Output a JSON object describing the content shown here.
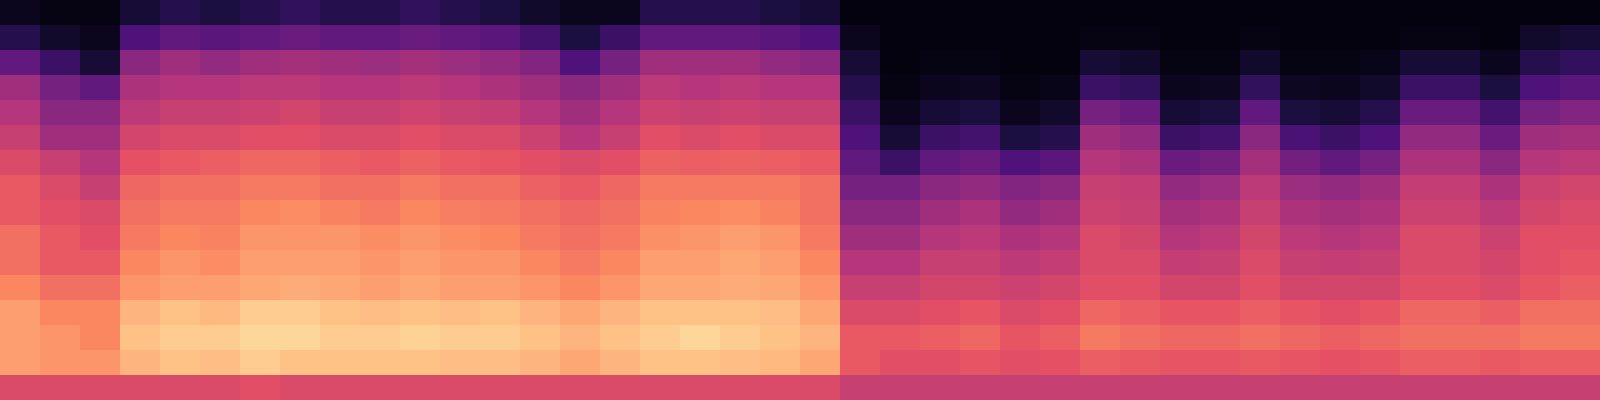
{
  "chart_data": {
    "type": "heatmap",
    "tick_labels": false,
    "color": "magma",
    "zlim": [
      0,
      1
    ],
    "cells": [
      [
        0.05,
        0.15,
        0.3,
        0.45,
        0.5,
        0.55,
        0.6,
        0.65,
        0.65,
        0.7,
        0.7,
        0.75,
        0.8,
        0.8,
        0.8,
        0.6
      ],
      [
        0.03,
        0.08,
        0.2,
        0.35,
        0.4,
        0.45,
        0.55,
        0.6,
        0.62,
        0.65,
        0.65,
        0.7,
        0.75,
        0.78,
        0.78,
        0.6
      ],
      [
        0.03,
        0.05,
        0.1,
        0.3,
        0.4,
        0.45,
        0.5,
        0.55,
        0.6,
        0.62,
        0.65,
        0.7,
        0.75,
        0.75,
        0.78,
        0.6
      ],
      [
        0.1,
        0.25,
        0.4,
        0.48,
        0.52,
        0.58,
        0.63,
        0.68,
        0.7,
        0.72,
        0.75,
        0.78,
        0.85,
        0.88,
        0.85,
        0.6
      ],
      [
        0.15,
        0.3,
        0.45,
        0.5,
        0.55,
        0.6,
        0.65,
        0.7,
        0.72,
        0.75,
        0.78,
        0.8,
        0.88,
        0.9,
        0.88,
        0.6
      ],
      [
        0.12,
        0.28,
        0.42,
        0.5,
        0.55,
        0.6,
        0.66,
        0.7,
        0.72,
        0.74,
        0.76,
        0.8,
        0.86,
        0.9,
        0.87,
        0.6
      ],
      [
        0.15,
        0.3,
        0.45,
        0.52,
        0.56,
        0.62,
        0.68,
        0.72,
        0.75,
        0.78,
        0.8,
        0.82,
        0.9,
        0.92,
        0.9,
        0.62
      ],
      [
        0.18,
        0.32,
        0.46,
        0.52,
        0.58,
        0.62,
        0.68,
        0.72,
        0.76,
        0.78,
        0.8,
        0.83,
        0.9,
        0.92,
        0.88,
        0.6
      ],
      [
        0.15,
        0.3,
        0.45,
        0.5,
        0.55,
        0.6,
        0.66,
        0.7,
        0.74,
        0.78,
        0.8,
        0.82,
        0.88,
        0.9,
        0.88,
        0.6
      ],
      [
        0.15,
        0.3,
        0.44,
        0.5,
        0.55,
        0.6,
        0.65,
        0.7,
        0.72,
        0.76,
        0.78,
        0.8,
        0.87,
        0.9,
        0.88,
        0.6
      ],
      [
        0.18,
        0.32,
        0.46,
        0.52,
        0.57,
        0.62,
        0.67,
        0.72,
        0.75,
        0.78,
        0.8,
        0.82,
        0.88,
        0.91,
        0.88,
        0.6
      ],
      [
        0.15,
        0.3,
        0.44,
        0.5,
        0.55,
        0.6,
        0.65,
        0.7,
        0.73,
        0.76,
        0.78,
        0.8,
        0.87,
        0.9,
        0.87,
        0.6
      ],
      [
        0.12,
        0.28,
        0.42,
        0.48,
        0.54,
        0.6,
        0.64,
        0.7,
        0.72,
        0.75,
        0.78,
        0.8,
        0.88,
        0.9,
        0.87,
        0.6
      ],
      [
        0.08,
        0.22,
        0.38,
        0.45,
        0.5,
        0.56,
        0.62,
        0.67,
        0.7,
        0.72,
        0.75,
        0.78,
        0.85,
        0.88,
        0.85,
        0.6
      ],
      [
        0.05,
        0.12,
        0.25,
        0.4,
        0.45,
        0.5,
        0.6,
        0.65,
        0.68,
        0.7,
        0.72,
        0.75,
        0.82,
        0.85,
        0.82,
        0.6
      ],
      [
        0.05,
        0.2,
        0.35,
        0.45,
        0.5,
        0.55,
        0.62,
        0.68,
        0.7,
        0.72,
        0.75,
        0.78,
        0.85,
        0.88,
        0.85,
        0.6
      ],
      [
        0.15,
        0.3,
        0.45,
        0.52,
        0.56,
        0.62,
        0.67,
        0.72,
        0.74,
        0.77,
        0.8,
        0.82,
        0.88,
        0.9,
        0.88,
        0.6
      ],
      [
        0.15,
        0.3,
        0.45,
        0.5,
        0.55,
        0.6,
        0.66,
        0.72,
        0.75,
        0.78,
        0.8,
        0.82,
        0.88,
        0.92,
        0.88,
        0.6
      ],
      [
        0.15,
        0.3,
        0.45,
        0.52,
        0.56,
        0.62,
        0.67,
        0.72,
        0.76,
        0.8,
        0.82,
        0.83,
        0.88,
        0.9,
        0.87,
        0.6
      ],
      [
        0.12,
        0.28,
        0.42,
        0.5,
        0.55,
        0.6,
        0.66,
        0.72,
        0.74,
        0.78,
        0.8,
        0.82,
        0.87,
        0.88,
        0.86,
        0.6
      ],
      [
        0.1,
        0.25,
        0.4,
        0.5,
        0.55,
        0.6,
        0.65,
        0.7,
        0.7,
        0.72,
        0.75,
        0.78,
        0.82,
        0.85,
        0.82,
        0.6
      ],
      [
        0.02,
        0.05,
        0.1,
        0.15,
        0.2,
        0.25,
        0.3,
        0.35,
        0.4,
        0.45,
        0.5,
        0.55,
        0.6,
        0.65,
        0.65,
        0.55
      ],
      [
        0.02,
        0.02,
        0.02,
        0.03,
        0.05,
        0.1,
        0.2,
        0.35,
        0.4,
        0.45,
        0.5,
        0.55,
        0.6,
        0.65,
        0.62,
        0.55
      ],
      [
        0.02,
        0.02,
        0.03,
        0.05,
        0.1,
        0.2,
        0.3,
        0.4,
        0.45,
        0.5,
        0.55,
        0.58,
        0.62,
        0.66,
        0.62,
        0.55
      ],
      [
        0.02,
        0.02,
        0.03,
        0.06,
        0.12,
        0.22,
        0.32,
        0.42,
        0.48,
        0.52,
        0.55,
        0.58,
        0.64,
        0.68,
        0.64,
        0.55
      ],
      [
        0.02,
        0.02,
        0.02,
        0.03,
        0.05,
        0.12,
        0.25,
        0.38,
        0.42,
        0.48,
        0.52,
        0.56,
        0.6,
        0.64,
        0.62,
        0.55
      ],
      [
        0.02,
        0.02,
        0.02,
        0.04,
        0.08,
        0.15,
        0.28,
        0.4,
        0.45,
        0.5,
        0.54,
        0.58,
        0.62,
        0.66,
        0.63,
        0.55
      ],
      [
        0.02,
        0.03,
        0.1,
        0.2,
        0.35,
        0.45,
        0.5,
        0.55,
        0.56,
        0.6,
        0.6,
        0.62,
        0.68,
        0.72,
        0.66,
        0.55
      ],
      [
        0.02,
        0.03,
        0.08,
        0.18,
        0.32,
        0.42,
        0.48,
        0.54,
        0.55,
        0.58,
        0.6,
        0.62,
        0.66,
        0.7,
        0.65,
        0.55
      ],
      [
        0.02,
        0.02,
        0.03,
        0.05,
        0.1,
        0.2,
        0.32,
        0.42,
        0.46,
        0.5,
        0.54,
        0.58,
        0.64,
        0.68,
        0.64,
        0.55
      ],
      [
        0.02,
        0.02,
        0.03,
        0.06,
        0.12,
        0.22,
        0.34,
        0.44,
        0.48,
        0.52,
        0.55,
        0.58,
        0.64,
        0.68,
        0.64,
        0.55
      ],
      [
        0.02,
        0.03,
        0.08,
        0.18,
        0.3,
        0.4,
        0.46,
        0.52,
        0.55,
        0.58,
        0.6,
        0.62,
        0.66,
        0.7,
        0.65,
        0.55
      ],
      [
        0.02,
        0.02,
        0.03,
        0.06,
        0.12,
        0.24,
        0.34,
        0.44,
        0.48,
        0.52,
        0.55,
        0.58,
        0.64,
        0.68,
        0.64,
        0.55
      ],
      [
        0.02,
        0.02,
        0.03,
        0.05,
        0.1,
        0.2,
        0.3,
        0.42,
        0.46,
        0.5,
        0.54,
        0.58,
        0.62,
        0.66,
        0.63,
        0.55
      ],
      [
        0.02,
        0.02,
        0.04,
        0.08,
        0.15,
        0.25,
        0.35,
        0.45,
        0.48,
        0.52,
        0.55,
        0.58,
        0.64,
        0.68,
        0.64,
        0.55
      ],
      [
        0.02,
        0.03,
        0.1,
        0.2,
        0.32,
        0.42,
        0.48,
        0.54,
        0.56,
        0.6,
        0.6,
        0.62,
        0.68,
        0.7,
        0.66,
        0.55
      ],
      [
        0.02,
        0.03,
        0.1,
        0.2,
        0.32,
        0.42,
        0.48,
        0.54,
        0.56,
        0.6,
        0.6,
        0.62,
        0.68,
        0.7,
        0.66,
        0.55
      ],
      [
        0.02,
        0.02,
        0.05,
        0.12,
        0.22,
        0.32,
        0.4,
        0.48,
        0.52,
        0.56,
        0.58,
        0.6,
        0.66,
        0.7,
        0.65,
        0.55
      ],
      [
        0.02,
        0.08,
        0.15,
        0.25,
        0.35,
        0.45,
        0.5,
        0.56,
        0.58,
        0.62,
        0.62,
        0.64,
        0.7,
        0.72,
        0.66,
        0.55
      ],
      [
        0.02,
        0.1,
        0.18,
        0.28,
        0.38,
        0.46,
        0.52,
        0.58,
        0.6,
        0.62,
        0.64,
        0.66,
        0.7,
        0.72,
        0.66,
        0.55
      ]
    ]
  }
}
